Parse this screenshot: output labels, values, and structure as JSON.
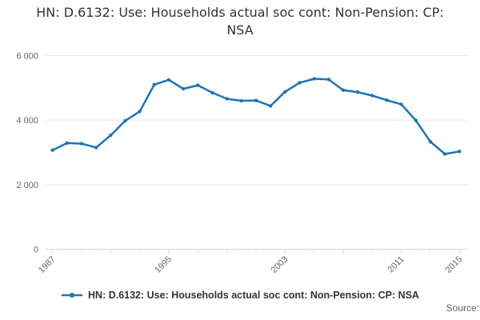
{
  "page": {
    "title": "HN: D.6132: Use: Households actual soc cont: Non-Pension: CP: NSA",
    "source_label": "Source:"
  },
  "legend": {
    "label": "HN: D.6132: Use: Households actual soc cont: Non-Pension: CP: NSA"
  },
  "colors": {
    "series": "#1a75ba",
    "grid_line": "#e6e6e6",
    "axis_line": "#ccd6eb",
    "tick": "#ccd6eb",
    "axis_label": "#666666",
    "title_text": "#333333",
    "legend_text": "#333333",
    "source_text": "#666666"
  },
  "chart_data": {
    "type": "line",
    "title": "HN: D.6132: Use: Households actual soc cont: Non-Pension: CP: NSA",
    "x": [
      1987,
      1988,
      1989,
      1990,
      1991,
      1992,
      1993,
      1994,
      1995,
      1996,
      1997,
      1998,
      1999,
      2000,
      2001,
      2002,
      2003,
      2004,
      2005,
      2006,
      2007,
      2008,
      2009,
      2010,
      2011,
      2012,
      2013,
      2014,
      2015
    ],
    "series": [
      {
        "name": "HN: D.6132: Use: Households actual soc cont: Non-Pension: CP: NSA",
        "values": [
          3070,
          3290,
          3270,
          3150,
          3530,
          3980,
          4270,
          5100,
          5250,
          4970,
          5080,
          4850,
          4660,
          4600,
          4610,
          4440,
          4880,
          5160,
          5280,
          5260,
          4930,
          4870,
          4760,
          4620,
          4490,
          3990,
          3330,
          2950,
          3030
        ]
      }
    ],
    "xlabel": "",
    "ylabel": "",
    "ylim": [
      0,
      6000
    ],
    "yticks": [
      0,
      2000,
      4000,
      6000
    ],
    "ytick_labels": [
      "0",
      "2 000",
      "4 000",
      "6 000"
    ],
    "xtick_labeled_years": [
      1987,
      1995,
      2003,
      2011,
      2015
    ],
    "xtick_minor_years": [
      1987,
      1989,
      1991,
      1993,
      1995,
      1997,
      1999,
      2001,
      2003,
      2005,
      2007,
      2009,
      2011,
      2013,
      2015
    ],
    "grid": "horizontal-only",
    "legend_position": "bottom-center",
    "marker": "circle",
    "x_label_rotation_deg": -45
  }
}
